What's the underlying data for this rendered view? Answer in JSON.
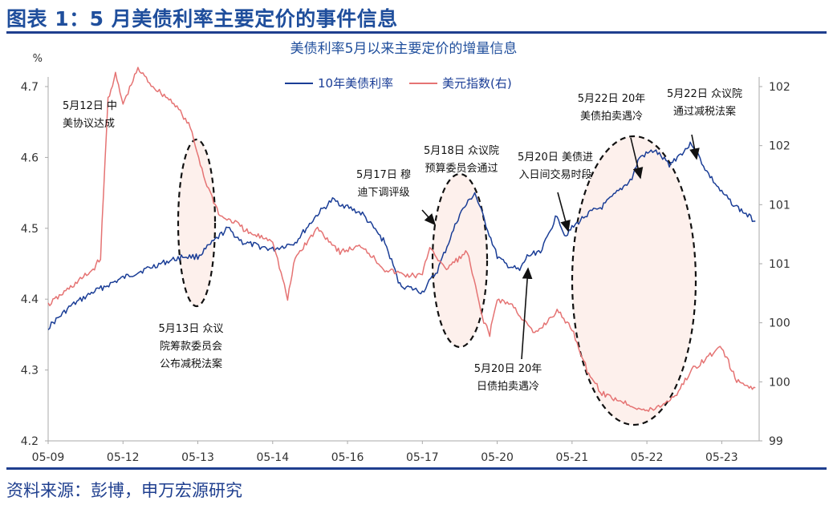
{
  "header": {
    "title": "图表 1：5 月美债利率主要定价的事件信息"
  },
  "footer": {
    "source": "资料来源：彭博，申万宏源研究"
  },
  "colors": {
    "accent": "#1f4e9c",
    "ust10y": "#1a3d96",
    "dxy": "#e57373",
    "ellipse_fill": "#fdf0ec"
  },
  "chart_data": {
    "type": "line",
    "title": "美债利率5月以来主要定价的增量信息",
    "y_unit_left": "%",
    "x_ticks": [
      "05-09",
      "05-12",
      "05-13",
      "05-14",
      "05-16",
      "05-17",
      "05-20",
      "05-21",
      "05-22",
      "05-23"
    ],
    "x_range": [
      0,
      9.5
    ],
    "y_left": {
      "range": [
        4.2,
        4.7
      ],
      "ticks": [
        4.2,
        4.3,
        4.4,
        4.5,
        4.6,
        4.7
      ]
    },
    "y_right": {
      "range": [
        99.0,
        102.0
      ],
      "tick_positions": [
        99.0,
        99.5,
        100.0,
        100.5,
        101.0,
        101.5,
        102.0
      ],
      "tick_labels": [
        "99",
        "100",
        "100",
        "101",
        "101",
        "102",
        "102"
      ]
    },
    "legend": {
      "placement": "top-center"
    },
    "grid": false,
    "series": [
      {
        "name": "10年美债利率",
        "axis": "left",
        "color": "#1a3d96",
        "x": [
          0.0,
          0.3,
          0.6,
          1.0,
          1.5,
          1.8,
          2.0,
          2.4,
          2.6,
          3.0,
          3.3,
          3.6,
          3.8,
          4.0,
          4.2,
          4.5,
          4.7,
          5.0,
          5.2,
          5.5,
          5.7,
          6.0,
          6.1,
          6.3,
          6.4,
          6.6,
          6.8,
          6.9,
          7.0,
          7.2,
          7.4,
          7.6,
          7.8,
          7.9,
          8.1,
          8.3,
          8.6,
          8.8,
          9.0,
          9.2,
          9.45
        ],
        "values": [
          4.36,
          4.39,
          4.41,
          4.43,
          4.45,
          4.46,
          4.46,
          4.5,
          4.48,
          4.47,
          4.48,
          4.52,
          4.54,
          4.53,
          4.52,
          4.48,
          4.42,
          4.41,
          4.44,
          4.52,
          4.55,
          4.46,
          4.45,
          4.44,
          4.46,
          4.47,
          4.52,
          4.49,
          4.5,
          4.52,
          4.53,
          4.55,
          4.57,
          4.6,
          4.61,
          4.59,
          4.62,
          4.58,
          4.55,
          4.53,
          4.51
        ]
      },
      {
        "name": "美元指数(右)",
        "axis": "right",
        "color": "#e57373",
        "x": [
          0.0,
          0.3,
          0.6,
          0.7,
          0.8,
          0.9,
          1.0,
          1.2,
          1.4,
          1.7,
          1.9,
          2.1,
          2.3,
          2.5,
          2.7,
          3.0,
          3.2,
          3.3,
          3.6,
          3.9,
          4.2,
          4.5,
          4.8,
          5.0,
          5.1,
          5.3,
          5.6,
          5.8,
          5.9,
          6.0,
          6.2,
          6.5,
          6.8,
          7.0,
          7.2,
          7.4,
          7.6,
          7.8,
          8.0,
          8.2,
          8.4,
          8.6,
          8.8,
          9.0,
          9.2,
          9.45
        ],
        "values": [
          100.15,
          100.3,
          100.45,
          100.55,
          101.9,
          102.1,
          101.85,
          102.15,
          102.0,
          101.85,
          101.65,
          101.2,
          100.9,
          100.85,
          100.75,
          100.7,
          100.2,
          100.55,
          100.8,
          100.6,
          100.65,
          100.45,
          100.4,
          100.4,
          100.65,
          100.45,
          100.6,
          100.05,
          99.9,
          100.2,
          100.15,
          99.9,
          100.1,
          99.95,
          99.6,
          99.4,
          99.35,
          99.3,
          99.25,
          99.3,
          99.4,
          99.6,
          99.7,
          99.8,
          99.5,
          99.45
        ]
      }
    ],
    "annotations": [
      {
        "id": "may12",
        "lines": [
          "5月12日 中",
          "美协议达成"
        ]
      },
      {
        "id": "may13",
        "lines": [
          "5月13日 众议",
          "院筹款委员会",
          "公布减税法案"
        ]
      },
      {
        "id": "may17",
        "lines": [
          "5月17日 穆",
          "迪下调评级"
        ]
      },
      {
        "id": "may18",
        "lines": [
          "5月18日 众议院",
          "预算委员会通过"
        ]
      },
      {
        "id": "may20a",
        "lines": [
          "5月20日 美债进",
          "入日间交易时段"
        ]
      },
      {
        "id": "may20b",
        "lines": [
          "5月20日 20年",
          "日债拍卖遇冷"
        ]
      },
      {
        "id": "may22a",
        "lines": [
          "5月22日 20年",
          "美债拍卖遇冷"
        ]
      },
      {
        "id": "may22b",
        "lines": [
          "5月22日 众议院",
          "通过减税法案"
        ]
      }
    ]
  }
}
